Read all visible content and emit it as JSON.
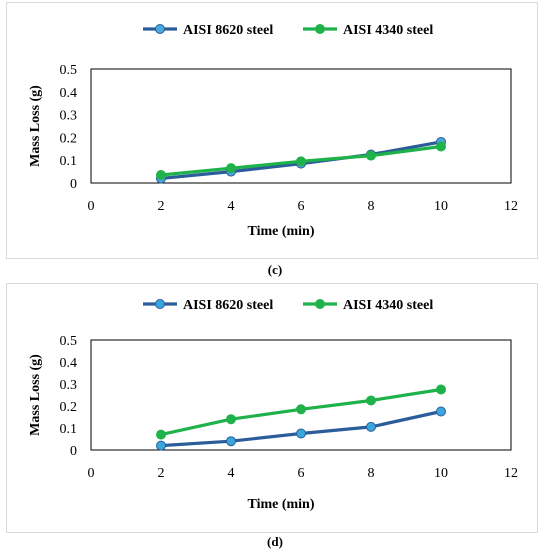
{
  "chart_data": [
    {
      "type": "line",
      "x": [
        2,
        4,
        6,
        8,
        10
      ],
      "series": [
        {
          "name": "AISI 8620 steel",
          "values": [
            0.02,
            0.05,
            0.085,
            0.125,
            0.18
          ],
          "color": "#2a5d9a",
          "marker_color": "#4aa8dd"
        },
        {
          "name": "AISI 4340 steel",
          "values": [
            0.035,
            0.065,
            0.095,
            0.12,
            0.16
          ],
          "color": "#1fb24a",
          "marker_color": "#1fb24a"
        }
      ],
      "xlabel": "Time (min)",
      "ylabel": "Mass Loss (g)",
      "xlim": [
        0,
        12
      ],
      "ylim": [
        0,
        0.5
      ],
      "xticks": [
        "0",
        "2",
        "4",
        "6",
        "8",
        "10",
        "12"
      ],
      "yticks": [
        "0",
        "0.1",
        "0.2",
        "0.3",
        "0.4",
        "0.5"
      ],
      "grid": false,
      "legend": "top-center",
      "caption": "(c)"
    },
    {
      "type": "line",
      "x": [
        2,
        4,
        6,
        8,
        10
      ],
      "series": [
        {
          "name": "AISI 8620 steel",
          "values": [
            0.02,
            0.04,
            0.075,
            0.105,
            0.175
          ],
          "color": "#2a5d9a",
          "marker_color": "#3aa7dc"
        },
        {
          "name": "AISI 4340 steel",
          "values": [
            0.07,
            0.14,
            0.185,
            0.225,
            0.275
          ],
          "color": "#1fb24a",
          "marker_color": "#1fb24a"
        }
      ],
      "xlabel": "Time (min)",
      "ylabel": "Mass Loss (g)",
      "xlim": [
        0,
        12
      ],
      "ylim": [
        0,
        0.5
      ],
      "xticks": [
        "0",
        "2",
        "4",
        "6",
        "8",
        "10",
        "12"
      ],
      "yticks": [
        "0",
        "0.1",
        "0.2",
        "0.3",
        "0.4",
        "0.5"
      ],
      "grid": false,
      "legend": "top-center",
      "caption": "(d)"
    }
  ]
}
